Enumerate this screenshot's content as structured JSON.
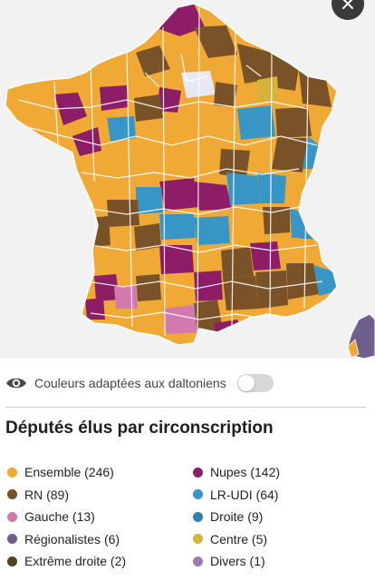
{
  "colors": {
    "ensemble": "#f0a935",
    "rn": "#7a5228",
    "gauche": "#d478b0",
    "regionalistes": "#6f5f8c",
    "extreme_droite": "#53401f",
    "nupes": "#8e1d67",
    "lr_udi": "#3896c6",
    "droite": "#2f7fb3",
    "centre": "#d6b33a",
    "divers": "#9b7bb3"
  },
  "toggle": {
    "label": "Couleurs adaptées aux daltoniens",
    "state": "off"
  },
  "legend": {
    "title": "Députés élus par circonscription",
    "left": [
      {
        "label": "Ensemble (246)",
        "color": "#f0a935"
      },
      {
        "label": "RN (89)",
        "color": "#7a5228"
      },
      {
        "label": "Gauche (13)",
        "color": "#d478b0"
      },
      {
        "label": "Régionalistes (6)",
        "color": "#6f5f8c"
      },
      {
        "label": "Extrême droite (2)",
        "color": "#53401f"
      }
    ],
    "right": [
      {
        "label": "Nupes (142)",
        "color": "#8e1d67"
      },
      {
        "label": "LR-UDI (64)",
        "color": "#3896c6"
      },
      {
        "label": "Droite (9)",
        "color": "#2f7fb3"
      },
      {
        "label": "Centre (5)",
        "color": "#d6b33a"
      },
      {
        "label": "Divers (1)",
        "color": "#9b7bb3"
      }
    ]
  },
  "icons": {
    "close": "close-icon",
    "eye": "eye-icon"
  }
}
